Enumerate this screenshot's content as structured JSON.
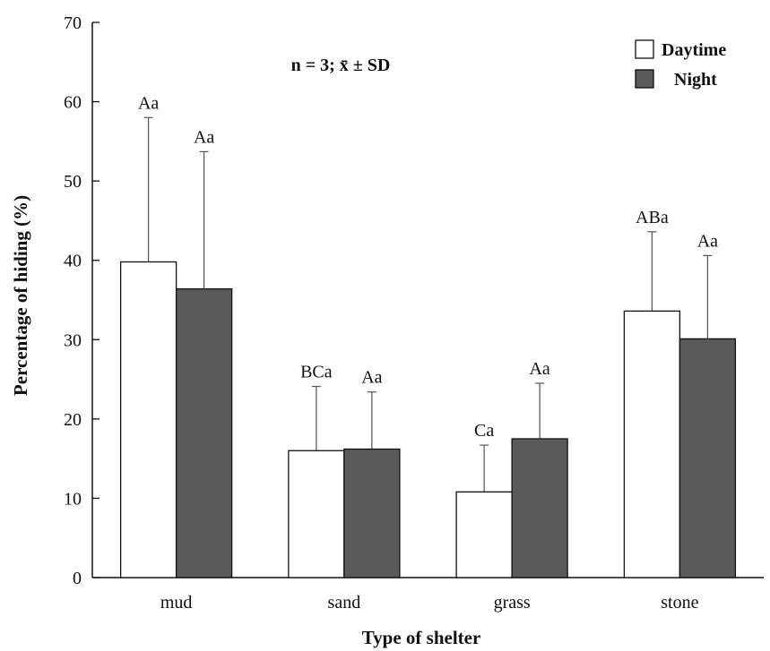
{
  "chart_data": {
    "type": "bar",
    "xlabel": "Type of shelter",
    "ylabel": "Percentage of hiding (%)",
    "ylim": [
      0,
      70
    ],
    "yticks": [
      0,
      10,
      20,
      30,
      40,
      50,
      60,
      70
    ],
    "categories": [
      "mud",
      "sand",
      "grass",
      "stone"
    ],
    "annotation": "n = 3; x̄ ± SD",
    "legend_position": "top-right",
    "grid": false,
    "series": [
      {
        "name": "Daytime",
        "color": "#ffffff",
        "values": [
          39.8,
          16.0,
          10.8,
          33.6
        ],
        "errors": [
          18.2,
          8.1,
          5.9,
          10.0
        ],
        "labels": [
          "Aa",
          "BCa",
          "Ca",
          "ABa"
        ]
      },
      {
        "name": "Night",
        "color": "#5a5a5a",
        "values": [
          36.4,
          16.2,
          17.5,
          30.1
        ],
        "errors": [
          17.3,
          7.2,
          7.0,
          10.5
        ],
        "labels": [
          "Aa",
          "Aa",
          "Aa",
          "Aa"
        ]
      }
    ]
  }
}
